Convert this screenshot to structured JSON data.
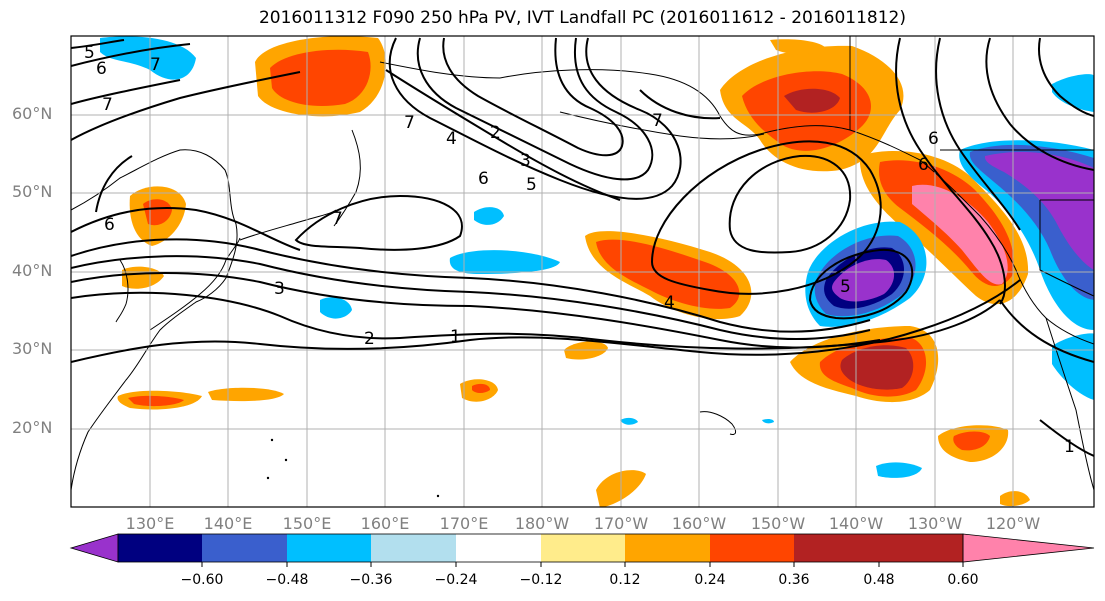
{
  "title": "2016011312 F090 250 hPa PV, IVT Landfall PC (2016011612 - 2016011812)",
  "lat_labels": [
    "60°N",
    "50°N",
    "40°N",
    "30°N",
    "20°N"
  ],
  "lon_labels": [
    "130°E",
    "140°E",
    "150°E",
    "160°E",
    "170°E",
    "180°W",
    "170°W",
    "160°W",
    "150°W",
    "140°W",
    "130°W",
    "120°W"
  ],
  "colorbar": {
    "tick_labels": [
      "−0.60",
      "−0.48",
      "−0.36",
      "−0.24",
      "−0.12",
      "0.12",
      "0.24",
      "0.36",
      "0.48",
      "0.60"
    ],
    "colors": [
      "#9932CC",
      "#000080",
      "#3A5FCD",
      "#00BFFF",
      "#B2DFEE",
      "#FFFFFF",
      "#FFEC8B",
      "#FFA500",
      "#FF4500",
      "#B22222",
      "#FF82AB"
    ]
  },
  "contour_labels": [
    "5",
    "6",
    "7",
    "7",
    "6",
    "7",
    "2",
    "3",
    "4",
    "5",
    "6",
    "7",
    "3",
    "2",
    "1",
    "7",
    "4",
    "5",
    "6",
    "6",
    "1"
  ]
}
